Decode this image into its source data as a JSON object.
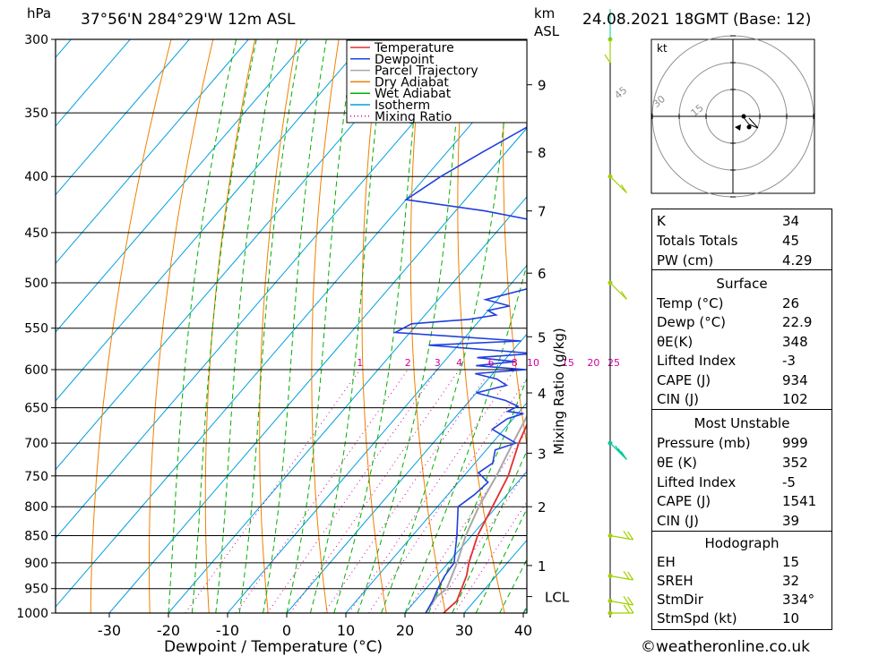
{
  "header": {
    "hpa_unit": "hPa",
    "location": "37°56'N  284°29'W  12m  ASL",
    "km_unit": "km",
    "asl_unit": "ASL",
    "datetime": "24.08.2021  18GMT  (Base: 12)"
  },
  "footer": {
    "copyright": "©weatheronline.co.uk"
  },
  "colors": {
    "temperature": "#e03030",
    "dewpoint": "#2040e0",
    "parcel": "#a8a8a8",
    "dry_adiabat": "#f08000",
    "wet_adiabat": "#00b000",
    "isotherm": "#00a0e0",
    "mixing_ratio": "#d000a0",
    "wind": "#a0d000",
    "wind_marker": "#00c8a0"
  },
  "chart_data": {
    "type": "line",
    "title": "",
    "xlabel": "Dewpoint / Temperature (°C)",
    "ylabel_right": "Mixing Ratio (g/kg)",
    "xlim": [
      -40,
      40
    ],
    "ylim_hpa": [
      1000,
      300
    ],
    "x_ticks": [
      "-30",
      "-20",
      "-10",
      "0",
      "10",
      "20",
      "30",
      "40"
    ],
    "x_tick_values": [
      -30,
      -20,
      -10,
      0,
      10,
      20,
      30,
      40
    ],
    "pressure_levels": [
      300,
      350,
      400,
      450,
      500,
      550,
      600,
      650,
      700,
      750,
      800,
      850,
      900,
      950,
      1000
    ],
    "pressure_labels": [
      "300",
      "350",
      "400",
      "450",
      "500",
      "550",
      "600",
      "650",
      "700",
      "750",
      "800",
      "850",
      "900",
      "950",
      "1000"
    ],
    "height_km": [
      {
        "label": "9",
        "p": 330
      },
      {
        "label": "8",
        "p": 380
      },
      {
        "label": "7",
        "p": 430
      },
      {
        "label": "6",
        "p": 490
      },
      {
        "label": "5",
        "p": 560
      },
      {
        "label": "4",
        "p": 630
      },
      {
        "label": "3",
        "p": 715
      },
      {
        "label": "2",
        "p": 800
      },
      {
        "label": "1",
        "p": 905
      }
    ],
    "lcl": {
      "label": "LCL",
      "p": 966
    },
    "mixing_ratio_labels": [
      "1",
      "2",
      "3",
      "4",
      "6",
      "8",
      "10",
      "15",
      "20",
      "25"
    ],
    "mixing_ratio_values": [
      1,
      2,
      3,
      4,
      6,
      8,
      10,
      15,
      20,
      25
    ],
    "legend": [
      "Temperature",
      "Dewpoint",
      "Parcel Trajectory",
      "Dry Adiabat",
      "Wet Adiabat",
      "Isotherm",
      "Mixing Ratio"
    ],
    "legend_position": "top-right",
    "series": [
      {
        "name": "Temperature",
        "points": [
          [
            1000,
            26.5
          ],
          [
            975,
            27.0
          ],
          [
            950,
            26.0
          ],
          [
            925,
            25.0
          ],
          [
            900,
            23.5
          ],
          [
            850,
            21.0
          ],
          [
            800,
            19.3
          ],
          [
            750,
            17.5
          ],
          [
            700,
            14.5
          ],
          [
            650,
            12.0
          ],
          [
            600,
            9.0
          ],
          [
            550,
            5.7
          ],
          [
            500,
            2.5
          ],
          [
            475,
            1.0
          ],
          [
            455,
            -0.5
          ],
          [
            440,
            0.0
          ],
          [
            420,
            -1.5
          ],
          [
            400,
            -3.5
          ],
          [
            375,
            -6.5
          ],
          [
            350,
            -9.5
          ],
          [
            325,
            -13.0
          ],
          [
            300,
            -18.0
          ]
        ]
      },
      {
        "name": "Dewpoint",
        "points": [
          [
            1000,
            23.5
          ],
          [
            975,
            22.9
          ],
          [
            950,
            22.0
          ],
          [
            925,
            21.3
          ],
          [
            900,
            21.0
          ],
          [
            850,
            17.5
          ],
          [
            800,
            13.5
          ],
          [
            780,
            14.5
          ],
          [
            760,
            15.0
          ],
          [
            745,
            12.0
          ],
          [
            730,
            13.0
          ],
          [
            710,
            11.5
          ],
          [
            700,
            14.0
          ],
          [
            690,
            11.0
          ],
          [
            680,
            8.0
          ],
          [
            665,
            9.0
          ],
          [
            658,
            11.0
          ],
          [
            655,
            8.0
          ],
          [
            648,
            9.0
          ],
          [
            640,
            6.0
          ],
          [
            630,
            0.0
          ],
          [
            620,
            4.0
          ],
          [
            612,
            1.5
          ],
          [
            605,
            -3.0
          ],
          [
            600,
            5.0
          ],
          [
            595,
            -4.0
          ],
          [
            590,
            2.0
          ],
          [
            585,
            -5.0
          ],
          [
            580,
            4.0
          ],
          [
            570,
            -15.0
          ],
          [
            565,
            0.0
          ],
          [
            555,
            -22.5
          ],
          [
            545,
            -21.0
          ],
          [
            540,
            -12.0
          ],
          [
            535,
            -8.0
          ],
          [
            530,
            -10.0
          ],
          [
            525,
            -7.0
          ],
          [
            518,
            -12.0
          ],
          [
            500,
            -3.5
          ],
          [
            495,
            4.0
          ],
          [
            492,
            0.0
          ],
          [
            485,
            3.0
          ],
          [
            475,
            0.0
          ],
          [
            470,
            3.0
          ],
          [
            462,
            -1.0
          ],
          [
            450,
            -3.0
          ],
          [
            430,
            -25.0
          ],
          [
            420,
            -40.0
          ],
          [
            400,
            -37.5
          ],
          [
            380,
            -34.0
          ],
          [
            360,
            -30.0
          ],
          [
            345,
            -19.0
          ],
          [
            330,
            -20.0
          ],
          [
            322,
            -24.0
          ],
          [
            310,
            -12.0
          ],
          [
            305,
            -14.0
          ],
          [
            300,
            -12.0
          ]
        ]
      },
      {
        "name": "Parcel Trajectory",
        "points": [
          [
            1000,
            23.5
          ],
          [
            966,
            23.0
          ],
          [
            950,
            23.5
          ],
          [
            900,
            21.5
          ],
          [
            850,
            19.0
          ],
          [
            800,
            17.0
          ],
          [
            750,
            15.5
          ],
          [
            700,
            13.5
          ],
          [
            650,
            11.5
          ],
          [
            600,
            9.5
          ],
          [
            550,
            7.0
          ],
          [
            500,
            4.5
          ],
          [
            450,
            0.5
          ],
          [
            400,
            -4.0
          ],
          [
            360,
            -9.0
          ]
        ]
      }
    ],
    "winds": [
      {
        "p": 1000,
        "dir": 270,
        "speed": 10
      },
      {
        "p": 975,
        "dir": 280,
        "speed": 10
      },
      {
        "p": 925,
        "dir": 280,
        "speed": 10
      },
      {
        "p": 850,
        "dir": 280,
        "speed": 10
      },
      {
        "p": 700,
        "dir": 315,
        "speed": 15
      },
      {
        "p": 500,
        "dir": 315,
        "speed": 5
      },
      {
        "p": 400,
        "dir": 315,
        "speed": 5
      },
      {
        "p": 300,
        "dir": 0,
        "speed": 5
      }
    ],
    "hodograph": {
      "unit": "kt",
      "ring_labels": [
        "15",
        "30",
        "45"
      ],
      "ring_values": [
        15,
        30,
        45
      ]
    }
  },
  "stats": {
    "indices": [
      {
        "key": "K",
        "value": "34"
      },
      {
        "key": "Totals Totals",
        "value": "45"
      },
      {
        "key": "PW (cm)",
        "value": "4.29"
      }
    ],
    "surface_title": "Surface",
    "surface": [
      {
        "key": "Temp (°C)",
        "value": "26"
      },
      {
        "key": "Dewp (°C)",
        "value": "22.9"
      },
      {
        "key": "θE(K)",
        "value": "348"
      },
      {
        "key": "Lifted Index",
        "value": "-3"
      },
      {
        "key": "CAPE (J)",
        "value": "934"
      },
      {
        "key": "CIN (J)",
        "value": "102"
      }
    ],
    "mu_title": "Most Unstable",
    "most_unstable": [
      {
        "key": "Pressure (mb)",
        "value": "999"
      },
      {
        "key": "θE (K)",
        "value": "352"
      },
      {
        "key": "Lifted Index",
        "value": "-5"
      },
      {
        "key": "CAPE (J)",
        "value": "1541"
      },
      {
        "key": "CIN (J)",
        "value": "39"
      }
    ],
    "hodo_title": "Hodograph",
    "hodograph": [
      {
        "key": "EH",
        "value": "15"
      },
      {
        "key": "SREH",
        "value": "32"
      },
      {
        "key": "StmDir",
        "value": "334°"
      },
      {
        "key": "StmSpd (kt)",
        "value": "10"
      }
    ]
  }
}
